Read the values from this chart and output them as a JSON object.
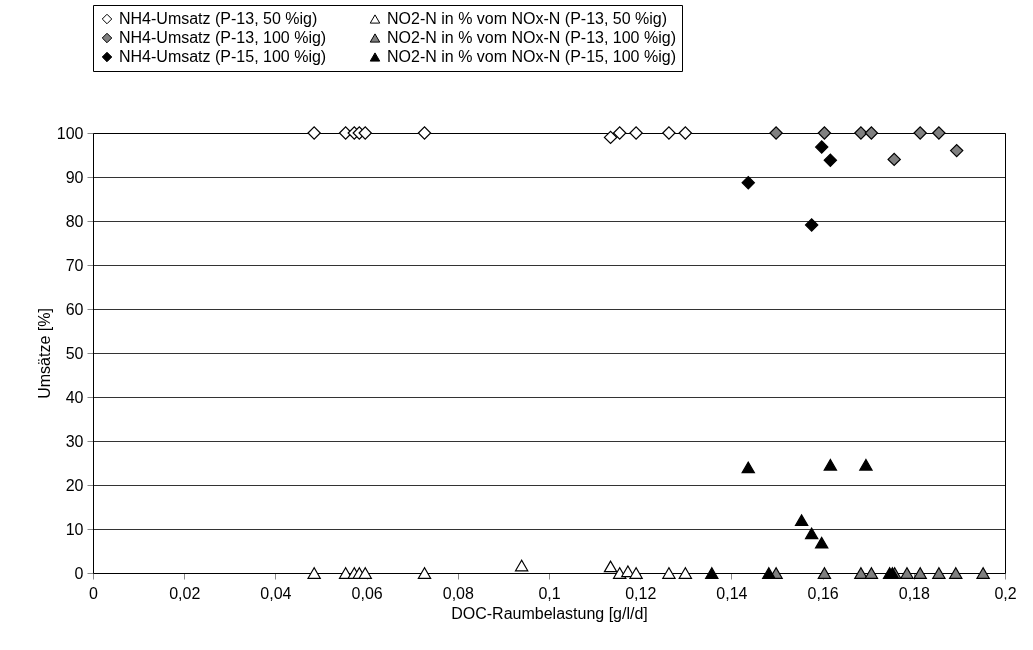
{
  "chart_data": {
    "type": "scatter",
    "xlabel": "DOC-Raumbelastung [g/l/d]",
    "ylabel": "Umsätze [%]",
    "xlim": [
      0,
      0.2
    ],
    "xticks": [
      0,
      {
        "value": 0.02,
        "label": "0,02"
      },
      {
        "value": 0.04,
        "label": "0,04"
      },
      {
        "value": 0.06,
        "label": "0,06"
      },
      {
        "value": 0.08,
        "label": "0,08"
      },
      {
        "value": 0.1,
        "label": "0,1"
      },
      {
        "value": 0.12,
        "label": "0,12"
      },
      {
        "value": 0.14,
        "label": "0,14"
      },
      {
        "value": 0.16,
        "label": "0,16"
      },
      {
        "value": 0.18,
        "label": "0,18"
      },
      {
        "value": 0.2,
        "label": "0,2"
      }
    ],
    "ylim": [
      0,
      100
    ],
    "yticks": [
      0,
      10,
      20,
      30,
      40,
      50,
      60,
      70,
      80,
      90,
      100
    ],
    "grid": "y",
    "legend": "top",
    "series": [
      {
        "name": "NH4-Umsatz (P-13, 50 %ig)",
        "color": "#ffffff",
        "marker": "diamond",
        "x": [
          0.0485,
          0.0554,
          0.0573,
          0.0584,
          0.0597,
          0.0727,
          0.1135,
          0.1155,
          0.1191,
          0.1263,
          0.1299
        ],
        "values": [
          100,
          100,
          100,
          100,
          100,
          100,
          99,
          100,
          100,
          100,
          100
        ]
      },
      {
        "name": "NO2-N in % vom NOx-N (P-13, 50 %ig)",
        "color": "#ffffff",
        "marker": "triangle",
        "x": [
          0.0485,
          0.0554,
          0.0573,
          0.0584,
          0.0597,
          0.0727,
          0.094,
          0.1135,
          0.1155,
          0.1173,
          0.1191,
          0.1263,
          0.1299
        ],
        "values": [
          0,
          0,
          0,
          0,
          0,
          0,
          1.7,
          1.5,
          0,
          0.4,
          0,
          0,
          0
        ]
      },
      {
        "name": "NH4-Umsatz (P-13, 100 %ig)",
        "color": "#808080",
        "marker": "diamond",
        "x": [
          0.1498,
          0.1604,
          0.1684,
          0.1707,
          0.1757,
          0.1814,
          0.1855,
          0.1894
        ],
        "values": [
          100,
          100,
          100,
          100,
          94,
          100,
          100,
          96
        ]
      },
      {
        "name": "NO2-N in % vom NOx-N (P-13, 100 %ig)",
        "color": "#808080",
        "marker": "triangle",
        "x": [
          0.1498,
          0.1604,
          0.1684,
          0.1707,
          0.1758,
          0.1785,
          0.1814,
          0.1855,
          0.1892,
          0.1952
        ],
        "values": [
          0,
          0,
          0,
          0,
          0,
          0,
          0,
          0,
          0,
          0
        ]
      },
      {
        "name": "NH4-Umsatz (P-15, 100 %ig)",
        "color": "#000000",
        "marker": "diamond",
        "x": [
          0.1437,
          0.1576,
          0.1598,
          0.1617
        ],
        "values": [
          88.7,
          79.1,
          96.8,
          93.8
        ]
      },
      {
        "name": "NO2-N in % vom NOx-N (P-15, 100 %ig)",
        "color": "#000000",
        "marker": "triangle",
        "x": [
          0.1357,
          0.1437,
          0.1482,
          0.1554,
          0.1576,
          0.1598,
          0.1617,
          0.1695,
          0.1747,
          0.1753
        ],
        "values": [
          0,
          24,
          0,
          12,
          9,
          6.9,
          24.6,
          24.6,
          0,
          0
        ]
      }
    ]
  }
}
